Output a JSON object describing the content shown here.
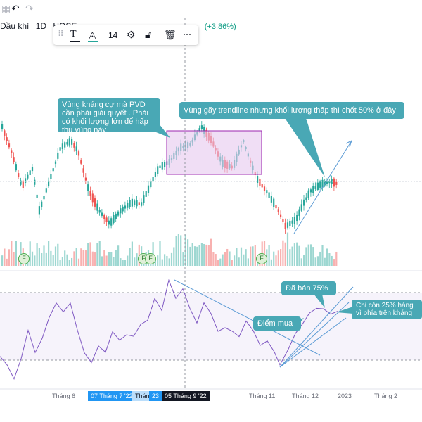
{
  "topbar": {
    "undo_icon": "undo-icon",
    "redo_icon": "redo-icon"
  },
  "symbol": {
    "name": "Dầu khí",
    "interval": "1D",
    "exchange": "HOSE",
    "change_pct": "(+3.86%)"
  },
  "toolbar": {
    "font_size": "14"
  },
  "annotations": {
    "resistance_note": "Vùng kháng cự mà PVD cần phải giải quyết . Phải có khối lượng lớn để hấp thụ vùng này",
    "trendline_note": "Vùng gãy trendline nhưng khối lượng thấp thì chốt 50% ở đây",
    "sold_note": "Đã bán 75%",
    "buy_note": "Điểm mua",
    "remaining_note": "Chỉ còn 25% hàng vì phía trên kháng"
  },
  "time_axis": {
    "labels": [
      "Tháng 6",
      "Tháng 11",
      "Tháng 12",
      "2023",
      "Tháng 2"
    ],
    "hl_date1": "07 Tháng 7 '22",
    "hl_partial": "Tháng",
    "hl_num": "23",
    "hl_date2": "05 Tháng 9 '22"
  },
  "event_marks": [
    "F",
    "F",
    "F",
    "F"
  ],
  "colors": {
    "up": "#26a69a",
    "down": "#ef5350",
    "rsi": "#7e57c2",
    "callout": "#49a8b5",
    "box": "#e1bee7"
  }
}
